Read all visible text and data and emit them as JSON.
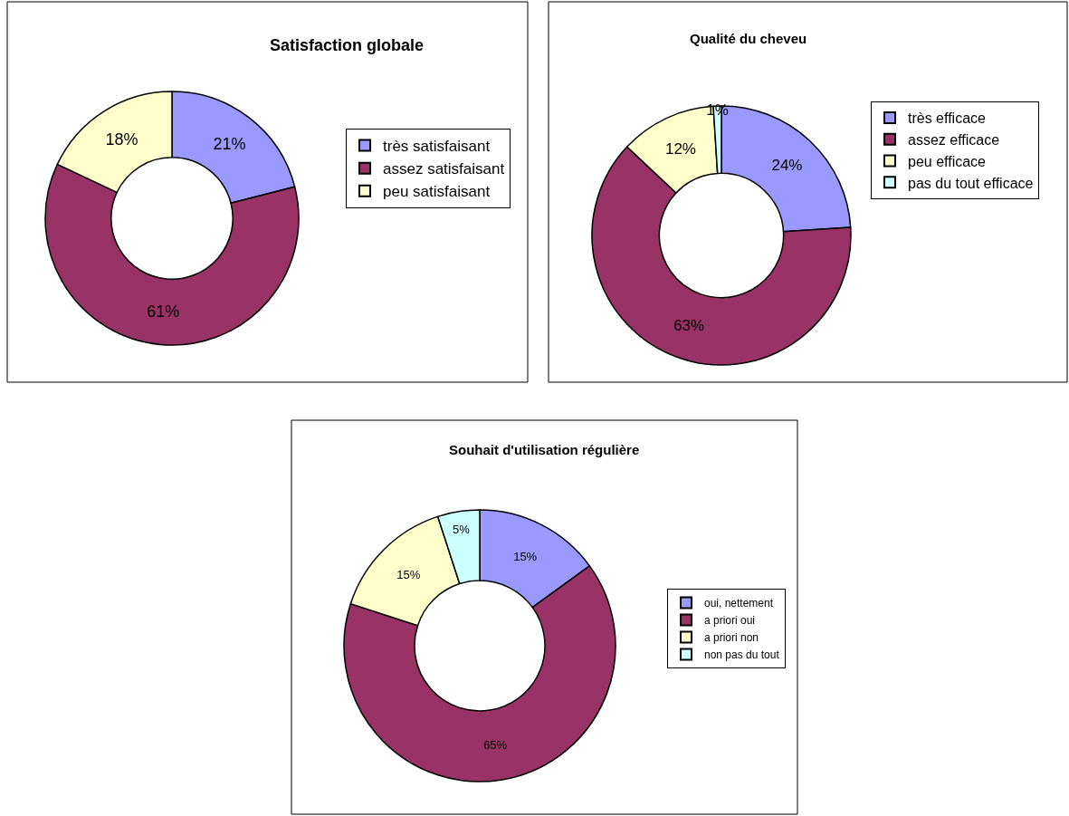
{
  "chart_data": [
    {
      "type": "donut",
      "title": "Satisfaction globale",
      "categories": [
        "très satisfaisant",
        "assez satisfaisant",
        "peu satisfaisant"
      ],
      "values": [
        21,
        61,
        18
      ],
      "colors": [
        "#9999ff",
        "#993366",
        "#ffffcc"
      ],
      "value_labels": [
        "21%",
        "61%",
        "18%"
      ],
      "legend": "right"
    },
    {
      "type": "donut",
      "title": "Qualité du cheveu",
      "categories": [
        "très efficace",
        "assez efficace",
        "peu efficace",
        "pas du tout efficace"
      ],
      "values": [
        24,
        63,
        12,
        1
      ],
      "colors": [
        "#9999ff",
        "#993366",
        "#ffffcc",
        "#ccffff"
      ],
      "value_labels": [
        "24%",
        "63%",
        "12%",
        "1%"
      ],
      "legend": "right"
    },
    {
      "type": "donut",
      "title": "Souhait d'utilisation régulière",
      "categories": [
        "oui, nettement",
        "a priori oui",
        "a priori non",
        "non pas du tout"
      ],
      "values": [
        15,
        65,
        15,
        5
      ],
      "colors": [
        "#9999ff",
        "#993366",
        "#ffffcc",
        "#ccffff"
      ],
      "value_labels": [
        "15%",
        "65%",
        "15%",
        "5%"
      ],
      "legend": "right"
    }
  ]
}
